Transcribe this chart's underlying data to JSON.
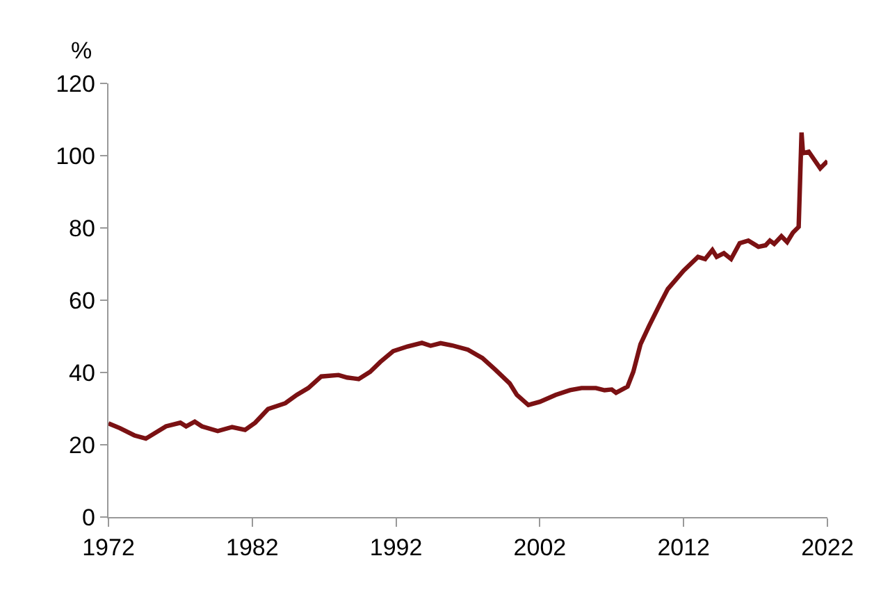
{
  "chart_data": {
    "type": "line",
    "ylabel": "%",
    "x": [
      1972.0,
      1972.8,
      1973.8,
      1974.6,
      1976.0,
      1977.0,
      1977.4,
      1978.0,
      1978.5,
      1979.6,
      1980.6,
      1981.5,
      1982.2,
      1983.1,
      1984.3,
      1985.1,
      1985.9,
      1986.8,
      1988.0,
      1988.6,
      1989.4,
      1990.2,
      1990.9,
      1991.8,
      1992.8,
      1993.8,
      1994.4,
      1995.1,
      1995.9,
      1997.0,
      1998.0,
      1998.9,
      1999.9,
      2000.4,
      2001.2,
      2002.0,
      2003.1,
      2004.1,
      2004.9,
      2005.9,
      2006.5,
      2007.0,
      2007.3,
      2008.1,
      2008.5,
      2009.0,
      2009.6,
      2010.4,
      2010.9,
      2012.0,
      2013.0,
      2013.5,
      2014.0,
      2014.3,
      2014.8,
      2015.3,
      2015.9,
      2016.5,
      2017.2,
      2017.7,
      2018.0,
      2018.3,
      2018.8,
      2019.2,
      2019.6,
      2020.0,
      2020.2,
      2020.3,
      2020.7,
      2021.5,
      2022.0
    ],
    "series": [
      {
        "color": "#7b1113",
        "values": [
          25.9,
          24.6,
          22.6,
          21.7,
          25.1,
          26.1,
          25.1,
          26.4,
          25.1,
          23.8,
          24.9,
          24.1,
          26.1,
          29.9,
          31.5,
          33.8,
          35.7,
          38.9,
          39.3,
          38.6,
          38.2,
          40.2,
          42.9,
          45.9,
          47.2,
          48.2,
          47.4,
          48.1,
          47.5,
          46.3,
          44.0,
          40.8,
          37.0,
          33.8,
          31.0,
          31.9,
          33.8,
          35.1,
          35.7,
          35.7,
          35.1,
          35.3,
          34.4,
          36.1,
          40.2,
          47.8,
          52.9,
          59.3,
          63.1,
          68.2,
          72.0,
          71.4,
          73.9,
          72.0,
          73.0,
          71.4,
          75.8,
          76.5,
          74.8,
          75.2,
          76.5,
          75.6,
          77.7,
          76.1,
          78.7,
          80.3,
          106.4,
          100.7,
          101.1,
          96.5,
          98.5
        ]
      }
    ],
    "xlim": [
      1972,
      2022
    ],
    "xticks": [
      1972,
      1982,
      1992,
      2002,
      2012,
      2022
    ],
    "ylim": [
      0,
      120
    ],
    "yticks": [
      0,
      20,
      40,
      60,
      80,
      100,
      120
    ],
    "marker": "none",
    "line_style": "solid"
  }
}
